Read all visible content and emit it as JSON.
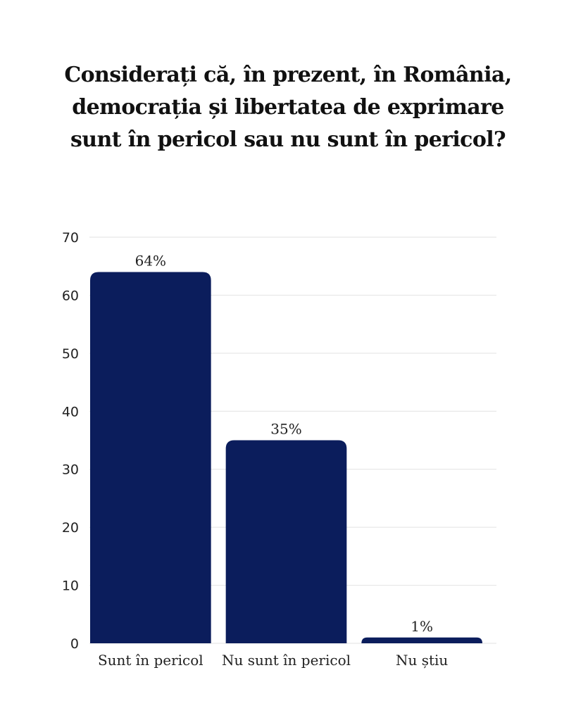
{
  "chart_data": {
    "type": "bar",
    "title_lines": [
      "Considerați că, în prezent, în România,",
      "democrația și libertatea de exprimare",
      "sunt în pericol sau nu sunt în pericol?"
    ],
    "categories": [
      "Sunt în pericol",
      "Nu sunt în pericol",
      "Nu știu"
    ],
    "values": [
      64,
      35,
      1
    ],
    "data_labels": [
      "64%",
      "35%",
      "1%"
    ],
    "xlabel": "",
    "ylabel": "",
    "ylim": [
      0,
      70
    ],
    "yticks": [
      0,
      10,
      20,
      30,
      40,
      50,
      60,
      70
    ],
    "grid": true,
    "legend": "none",
    "bar_color": "#0b1d5c",
    "grid_color": "#e2e2e2"
  }
}
